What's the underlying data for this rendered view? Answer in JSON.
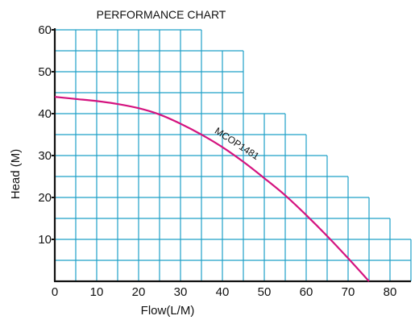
{
  "chart_data": {
    "type": "line",
    "title": "PERFORMANCE CHART",
    "xlabel": "Flow(L/M)",
    "ylabel": "Head (M)",
    "xlim": [
      0,
      85
    ],
    "ylim": [
      0,
      60
    ],
    "x_ticks": [
      0,
      10,
      20,
      30,
      40,
      50,
      60,
      70,
      80
    ],
    "y_ticks": [
      10,
      20,
      30,
      40,
      50,
      60
    ],
    "grid": true,
    "grid_step": {
      "x": 5,
      "y": 5
    },
    "grid_envelope": [
      {
        "x_from": 0,
        "x_to": 35,
        "y_top": 60
      },
      {
        "x_from": 35,
        "x_to": 45,
        "y_top": 55
      },
      {
        "x_from": 45,
        "x_to": 55,
        "y_top": 40
      },
      {
        "x_from": 55,
        "x_to": 60,
        "y_top": 35
      },
      {
        "x_from": 60,
        "x_to": 65,
        "y_top": 30
      },
      {
        "x_from": 65,
        "x_to": 70,
        "y_top": 25
      },
      {
        "x_from": 70,
        "x_to": 75,
        "y_top": 20
      },
      {
        "x_from": 75,
        "x_to": 80,
        "y_top": 15
      },
      {
        "x_from": 80,
        "x_to": 85,
        "y_top": 10
      }
    ],
    "series": [
      {
        "name": "MCOP1481",
        "color": "#d4137f",
        "points": [
          [
            0,
            44
          ],
          [
            5,
            43.5
          ],
          [
            10,
            43
          ],
          [
            15,
            42.3
          ],
          [
            20,
            41.3
          ],
          [
            25,
            39.8
          ],
          [
            30,
            37.6
          ],
          [
            35,
            35
          ],
          [
            40,
            32
          ],
          [
            45,
            28.5
          ],
          [
            50,
            24.6
          ],
          [
            55,
            20.5
          ],
          [
            60,
            15.8
          ],
          [
            65,
            10.8
          ],
          [
            70,
            5.5
          ],
          [
            75,
            0
          ]
        ]
      }
    ],
    "colors": {
      "grid": "#1fa0c8",
      "axis": "#111111"
    }
  }
}
